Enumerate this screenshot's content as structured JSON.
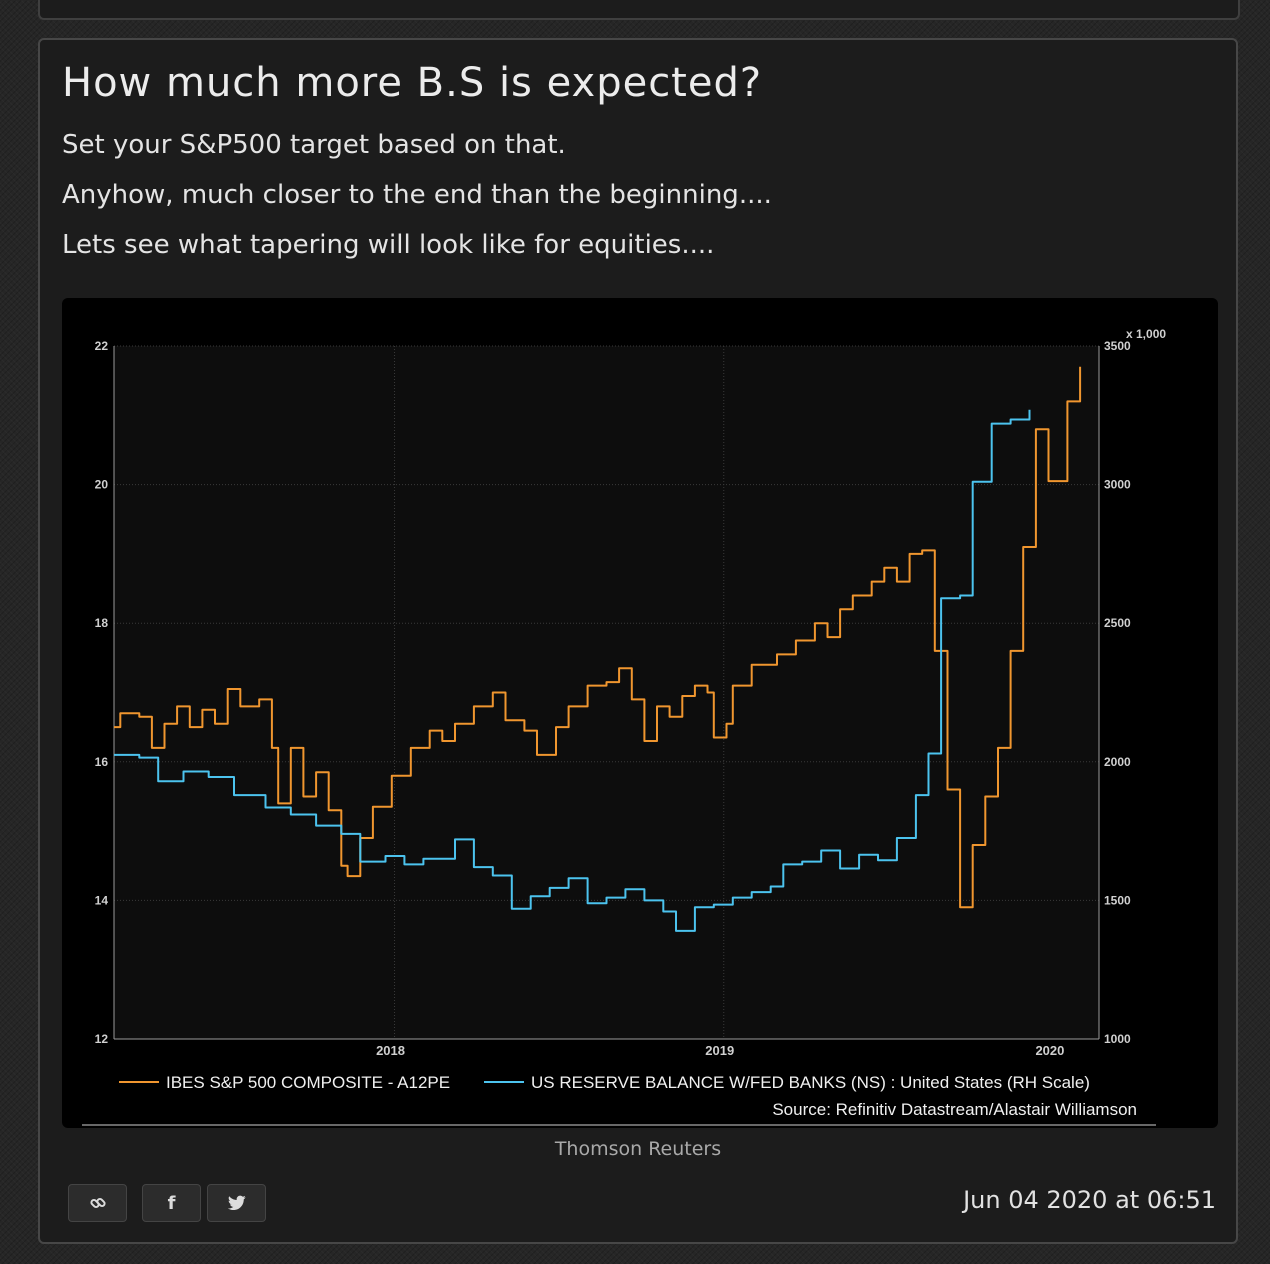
{
  "post": {
    "title": "How much more B.S is expected?",
    "paragraphs": [
      "Set your S&P500 target based on that.",
      "Anyhow, much closer to the end than the beginning....",
      "Lets see what tapering will look like for equities...."
    ],
    "image_caption": "Thomson Reuters",
    "timestamp": "Jun 04 2020 at 06:51",
    "share_buttons": [
      {
        "name": "link",
        "icon": "link-icon"
      },
      {
        "name": "facebook",
        "icon": "facebook-icon",
        "glyph": "f"
      },
      {
        "name": "twitter",
        "icon": "twitter-icon"
      }
    ]
  },
  "colors": {
    "series_orange": "#f0962f",
    "series_blue": "#4cc3ee",
    "chart_bg": "#000000",
    "card_bg": "#1c1c1c"
  },
  "chart_data": {
    "type": "line",
    "right_axis_unit": "x 1,000",
    "left_ylim": [
      12,
      22
    ],
    "right_ylim": [
      1000,
      3500
    ],
    "left_ticks": [
      "12",
      "14",
      "16",
      "18",
      "20",
      "22"
    ],
    "right_ticks": [
      "1000",
      "1500",
      "2000",
      "2500",
      "3000",
      "3500"
    ],
    "x_tick_labels": [
      "2018",
      "2019",
      "2020"
    ],
    "grid": true,
    "legend_position": "bottom",
    "source": "Source: Refinitiv Datastream/Alastair Williamson",
    "series": [
      {
        "name": "IBES S&P 500 COMPOSITE - A12PE",
        "axis": "left",
        "points": [
          [
            "2017-08-25",
            16.5
          ],
          [
            "2017-09-01",
            16.7
          ],
          [
            "2017-09-22",
            16.65
          ],
          [
            "2017-10-06",
            16.2
          ],
          [
            "2017-10-20",
            16.55
          ],
          [
            "2017-11-03",
            16.8
          ],
          [
            "2017-11-17",
            16.5
          ],
          [
            "2017-12-01",
            16.75
          ],
          [
            "2017-12-15",
            16.55
          ],
          [
            "2017-12-29",
            17.05
          ],
          [
            "2018-01-12",
            16.8
          ],
          [
            "2018-02-02",
            16.9
          ],
          [
            "2018-02-16",
            16.2
          ],
          [
            "2018-02-23",
            15.4
          ],
          [
            "2018-03-09",
            16.2
          ],
          [
            "2018-03-23",
            15.5
          ],
          [
            "2018-04-06",
            15.85
          ],
          [
            "2018-04-20",
            15.3
          ],
          [
            "2018-05-04",
            14.5
          ],
          [
            "2018-05-11",
            14.35
          ],
          [
            "2018-05-25",
            14.9
          ],
          [
            "2018-06-08",
            15.35
          ],
          [
            "2018-06-29",
            15.8
          ],
          [
            "2018-07-20",
            16.2
          ],
          [
            "2018-08-10",
            16.45
          ],
          [
            "2018-08-24",
            16.3
          ],
          [
            "2018-09-07",
            16.55
          ],
          [
            "2018-09-28",
            16.8
          ],
          [
            "2018-10-19",
            17.0
          ],
          [
            "2018-11-02",
            16.6
          ],
          [
            "2018-11-23",
            16.45
          ],
          [
            "2018-12-07",
            16.1
          ],
          [
            "2018-12-28",
            16.5
          ],
          [
            "2019-01-11",
            16.8
          ],
          [
            "2019-02-01",
            17.1
          ],
          [
            "2019-02-22",
            17.15
          ],
          [
            "2019-03-08",
            17.35
          ],
          [
            "2019-03-22",
            16.9
          ],
          [
            "2019-04-05",
            16.3
          ],
          [
            "2019-04-19",
            16.8
          ],
          [
            "2019-05-03",
            16.65
          ],
          [
            "2019-05-17",
            16.95
          ],
          [
            "2019-05-31",
            17.1
          ],
          [
            "2019-06-14",
            17.0
          ],
          [
            "2019-06-21",
            16.35
          ],
          [
            "2019-07-05",
            16.55
          ],
          [
            "2019-07-12",
            17.1
          ],
          [
            "2019-08-02",
            17.4
          ],
          [
            "2019-08-30",
            17.55
          ],
          [
            "2019-09-20",
            17.75
          ],
          [
            "2019-10-11",
            18.0
          ],
          [
            "2019-10-25",
            17.8
          ],
          [
            "2019-11-08",
            18.2
          ],
          [
            "2019-11-22",
            18.4
          ],
          [
            "2019-12-13",
            18.6
          ],
          [
            "2019-12-27",
            18.8
          ],
          [
            "2020-01-10",
            18.6
          ],
          [
            "2020-01-24",
            19.0
          ],
          [
            "2020-02-07",
            19.05
          ],
          [
            "2020-02-21",
            17.6
          ],
          [
            "2020-03-06",
            15.6
          ],
          [
            "2020-03-20",
            13.9
          ],
          [
            "2020-04-03",
            14.8
          ],
          [
            "2020-04-17",
            15.5
          ],
          [
            "2020-05-01",
            16.2
          ],
          [
            "2020-05-15",
            17.6
          ],
          [
            "2020-05-29",
            19.1
          ],
          [
            "2020-06-12",
            20.8
          ],
          [
            "2020-06-26",
            20.05
          ],
          [
            "2020-07-17",
            21.2
          ],
          [
            "2020-07-31",
            21.7
          ]
        ]
      },
      {
        "name": "US RESERVE BALANCE W/FED BANKS (NS) : United States (RH Scale)",
        "axis": "right",
        "points": [
          [
            "2017-08-25",
            2025
          ],
          [
            "2017-09-22",
            2015
          ],
          [
            "2017-10-13",
            1930
          ],
          [
            "2017-11-10",
            1965
          ],
          [
            "2017-12-08",
            1945
          ],
          [
            "2018-01-05",
            1880
          ],
          [
            "2018-02-09",
            1835
          ],
          [
            "2018-03-09",
            1810
          ],
          [
            "2018-04-06",
            1770
          ],
          [
            "2018-05-04",
            1740
          ],
          [
            "2018-05-25",
            1640
          ],
          [
            "2018-06-22",
            1660
          ],
          [
            "2018-07-13",
            1630
          ],
          [
            "2018-08-03",
            1650
          ],
          [
            "2018-09-07",
            1720
          ],
          [
            "2018-09-28",
            1620
          ],
          [
            "2018-10-19",
            1590
          ],
          [
            "2018-11-09",
            1470
          ],
          [
            "2018-11-30",
            1515
          ],
          [
            "2018-12-21",
            1545
          ],
          [
            "2019-01-11",
            1580
          ],
          [
            "2019-02-01",
            1490
          ],
          [
            "2019-02-22",
            1510
          ],
          [
            "2019-03-15",
            1540
          ],
          [
            "2019-04-05",
            1500
          ],
          [
            "2019-04-26",
            1460
          ],
          [
            "2019-05-10",
            1390
          ],
          [
            "2019-05-31",
            1475
          ],
          [
            "2019-06-21",
            1485
          ],
          [
            "2019-07-12",
            1510
          ],
          [
            "2019-08-02",
            1530
          ],
          [
            "2019-08-23",
            1550
          ],
          [
            "2019-09-06",
            1630
          ],
          [
            "2019-09-27",
            1640
          ],
          [
            "2019-10-18",
            1680
          ],
          [
            "2019-11-08",
            1615
          ],
          [
            "2019-11-29",
            1665
          ],
          [
            "2019-12-20",
            1645
          ],
          [
            "2020-01-10",
            1725
          ],
          [
            "2020-01-31",
            1880
          ],
          [
            "2020-02-14",
            2030
          ],
          [
            "2020-02-28",
            2590
          ],
          [
            "2020-03-20",
            2600
          ],
          [
            "2020-04-03",
            3010
          ],
          [
            "2020-04-24",
            3220
          ],
          [
            "2020-05-15",
            3235
          ],
          [
            "2020-06-05",
            3270
          ]
        ]
      }
    ]
  }
}
